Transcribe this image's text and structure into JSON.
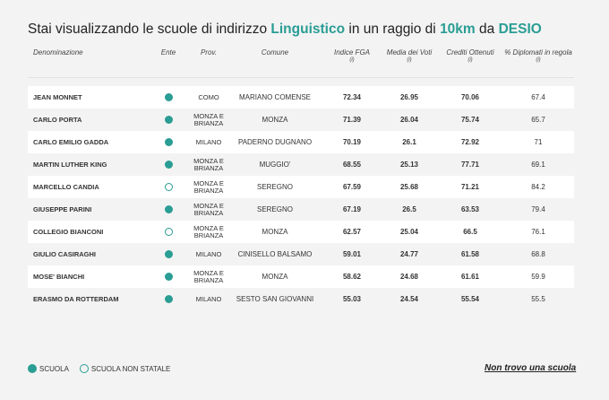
{
  "title": {
    "prefix": "Stai visualizzando le scuole di indirizzo ",
    "indirizzo": "Linguistico",
    "mid": " in un raggio di ",
    "raggio": "10km",
    "mid2": " da ",
    "citta": "DESIO"
  },
  "headers": {
    "denominazione": "Denominazione",
    "ente": "Ente",
    "prov": "Prov.",
    "comune": "Comune",
    "indice_fga": "Indice FGA",
    "media_voti": "Media dei Voti",
    "crediti": "Crediti Ottenuti",
    "diplomati": "% Diplomati in regola",
    "info_mark": "(i)"
  },
  "rows": [
    {
      "name": "JEAN MONNET",
      "ente": "statale",
      "prov": "COMO",
      "comune": "MARIANO COMENSE",
      "fga": "72.34",
      "media": "26.95",
      "crediti": "70.06",
      "diplomati": "67.4"
    },
    {
      "name": "CARLO PORTA",
      "ente": "statale",
      "prov": "MONZA E BRIANZA",
      "comune": "MONZA",
      "fga": "71.39",
      "media": "26.04",
      "crediti": "75.74",
      "diplomati": "65.7"
    },
    {
      "name": "CARLO EMILIO GADDA",
      "ente": "statale",
      "prov": "MILANO",
      "comune": "PADERNO DUGNANO",
      "fga": "70.19",
      "media": "26.1",
      "crediti": "72.92",
      "diplomati": "71"
    },
    {
      "name": "MARTIN LUTHER KING",
      "ente": "statale",
      "prov": "MONZA E BRIANZA",
      "comune": "MUGGIO'",
      "fga": "68.55",
      "media": "25.13",
      "crediti": "77.71",
      "diplomati": "69.1"
    },
    {
      "name": "MARCELLO CANDIA",
      "ente": "non statale",
      "prov": "MONZA E BRIANZA",
      "comune": "SEREGNO",
      "fga": "67.59",
      "media": "25.68",
      "crediti": "71.21",
      "diplomati": "84.2"
    },
    {
      "name": "GIUSEPPE PARINI",
      "ente": "statale",
      "prov": "MONZA E BRIANZA",
      "comune": "SEREGNO",
      "fga": "67.19",
      "media": "26.5",
      "crediti": "63.53",
      "diplomati": "79.4"
    },
    {
      "name": "COLLEGIO BIANCONI",
      "ente": "non statale",
      "prov": "MONZA E BRIANZA",
      "comune": "MONZA",
      "fga": "62.57",
      "media": "25.04",
      "crediti": "66.5",
      "diplomati": "76.1"
    },
    {
      "name": "GIULIO CASIRAGHI",
      "ente": "statale",
      "prov": "MILANO",
      "comune": "CINISELLO BALSAMO",
      "fga": "59.01",
      "media": "24.77",
      "crediti": "61.58",
      "diplomati": "68.8"
    },
    {
      "name": "MOSE' BIANCHI",
      "ente": "statale",
      "prov": "MONZA E BRIANZA",
      "comune": "MONZA",
      "fga": "58.62",
      "media": "24.68",
      "crediti": "61.61",
      "diplomati": "59.9"
    },
    {
      "name": "ERASMO DA ROTTERDAM",
      "ente": "statale",
      "prov": "MILANO",
      "comune": "SESTO SAN GIOVANNI",
      "fga": "55.03",
      "media": "24.54",
      "crediti": "55.54",
      "diplomati": "55.5"
    }
  ],
  "legend": {
    "statale": "SCUOLA",
    "non_statale": "SCUOLA NON STATALE"
  },
  "not_found_link": "Non trovo una scuola",
  "colors": {
    "accent": "#2a9d94"
  }
}
